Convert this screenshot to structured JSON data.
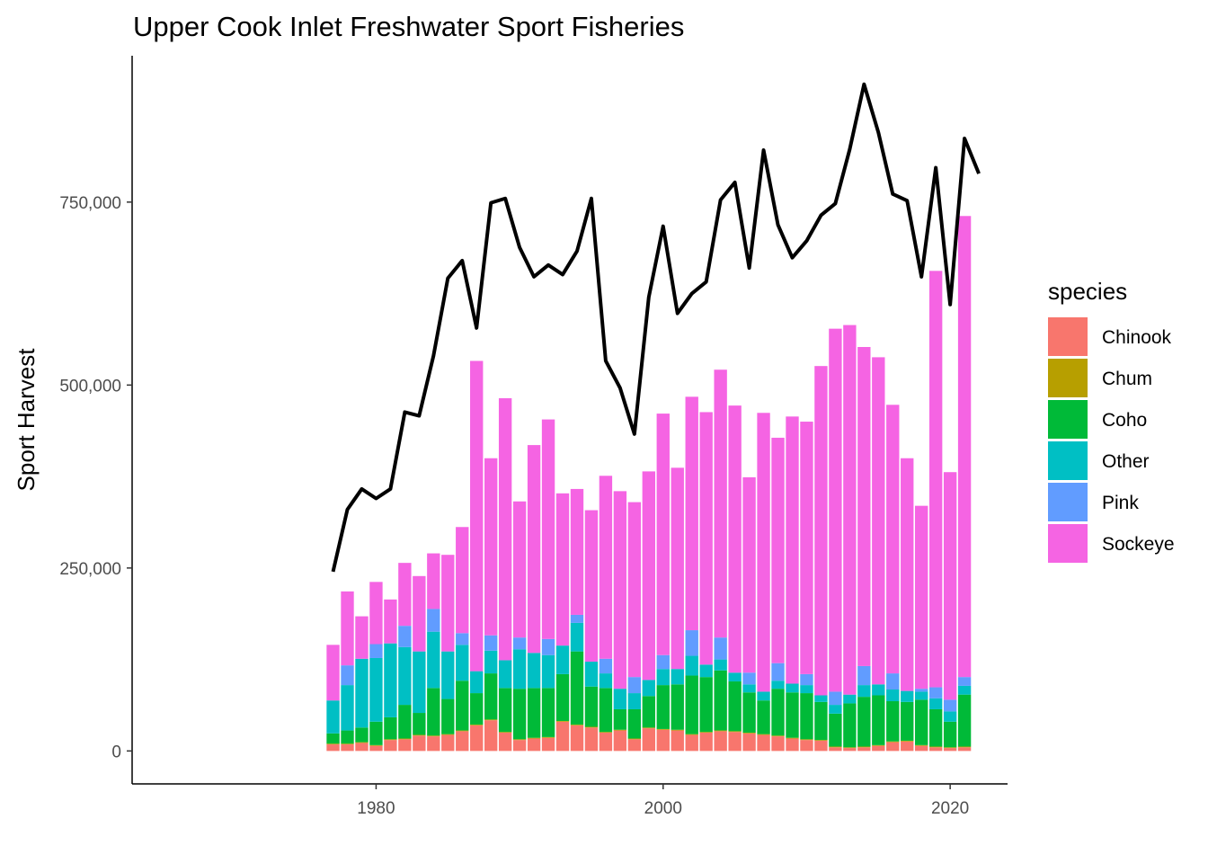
{
  "chart_data": {
    "type": "bar",
    "stacked": true,
    "title": "Upper Cook Inlet Freshwater Sport Fisheries",
    "xlabel": "",
    "ylabel": "Sport Harvest",
    "xlim": [
      1963,
      2024
    ],
    "ylim": [
      -45000,
      950000
    ],
    "x_ticks": [
      1980,
      2000,
      2020
    ],
    "x_tick_labels": [
      "1980",
      "2000",
      "2020"
    ],
    "y_ticks": [
      0,
      250000,
      500000,
      750000
    ],
    "y_tick_labels": [
      "0",
      "250,000",
      "500,000",
      "750,000"
    ],
    "grid": false,
    "legend": {
      "title": "species",
      "placement": "right"
    },
    "colors": {
      "Chinook": "#F8766D",
      "Chum": "#B79F00",
      "Coho": "#00BA38",
      "Other": "#00BFC4",
      "Pink": "#619CFF",
      "Sockeye": "#F564E3",
      "line": "#000000"
    },
    "stack_order_bottom_to_top": [
      "Chinook",
      "Chum",
      "Coho",
      "Other",
      "Pink",
      "Sockeye"
    ],
    "x": [
      1977,
      1978,
      1979,
      1980,
      1981,
      1982,
      1983,
      1984,
      1985,
      1986,
      1987,
      1988,
      1989,
      1990,
      1991,
      1992,
      1993,
      1994,
      1995,
      1996,
      1997,
      1998,
      1999,
      2000,
      2001,
      2002,
      2003,
      2004,
      2005,
      2006,
      2007,
      2008,
      2009,
      2010,
      2011,
      2012,
      2013,
      2014,
      2015,
      2016,
      2017,
      2018,
      2019,
      2020,
      2021
    ],
    "series": [
      {
        "name": "Chinook",
        "values": [
          9000,
          9000,
          11000,
          7000,
          15000,
          16000,
          21000,
          20000,
          22000,
          27000,
          35000,
          42000,
          25000,
          15000,
          17000,
          18000,
          40000,
          35000,
          32000,
          25000,
          28000,
          16000,
          31000,
          29000,
          28000,
          22000,
          25000,
          27000,
          26000,
          24000,
          22000,
          20000,
          17000,
          15000,
          14000,
          5000,
          4000,
          5000,
          7000,
          12000,
          13000,
          7000,
          5000,
          4000,
          5000
        ]
      },
      {
        "name": "Chum",
        "values": [
          1000,
          1000,
          1000,
          1000,
          1000,
          1000,
          1000,
          1000,
          1000,
          1000,
          1000,
          1000,
          1000,
          1000,
          1000,
          1000,
          1000,
          1000,
          1000,
          1000,
          1000,
          1000,
          1000,
          1000,
          1000,
          1000,
          1000,
          1000,
          1000,
          1000,
          1000,
          1000,
          1000,
          1000,
          1000,
          1000,
          1000,
          1000,
          1000,
          1000,
          1000,
          1000,
          1000,
          1000,
          1000
        ]
      },
      {
        "name": "Coho",
        "values": [
          14000,
          18000,
          20000,
          32000,
          30000,
          46000,
          30000,
          65000,
          48000,
          68000,
          43000,
          63000,
          60000,
          69000,
          68000,
          67000,
          64000,
          100000,
          55000,
          60000,
          28000,
          40000,
          43000,
          60000,
          62000,
          80000,
          75000,
          82000,
          68000,
          55000,
          46000,
          64000,
          62000,
          63000,
          52000,
          45000,
          60000,
          68000,
          68000,
          55000,
          53000,
          62000,
          51000,
          35000,
          71000
        ]
      },
      {
        "name": "Other",
        "values": [
          45000,
          62000,
          94000,
          87000,
          101000,
          79000,
          84000,
          77000,
          65000,
          49000,
          30000,
          31000,
          38000,
          54000,
          48000,
          45000,
          39000,
          39000,
          34000,
          20000,
          28000,
          22000,
          22000,
          22000,
          21000,
          27000,
          17000,
          15000,
          12000,
          11000,
          12000,
          11000,
          12000,
          11000,
          9000,
          12000,
          12000,
          16000,
          15000,
          16000,
          15000,
          11000,
          15000,
          14000,
          12000
        ]
      },
      {
        "name": "Pink",
        "values": [
          0,
          27000,
          0,
          19000,
          0,
          29000,
          0,
          31000,
          0,
          16000,
          0,
          21000,
          0,
          16000,
          0,
          22000,
          0,
          11000,
          0,
          20000,
          0,
          22000,
          0,
          19000,
          0,
          35000,
          0,
          30000,
          0,
          16000,
          0,
          24000,
          0,
          15000,
          0,
          18000,
          0,
          26000,
          0,
          22000,
          0,
          4000,
          15000,
          16000,
          12000
        ]
      },
      {
        "name": "Sockeye",
        "values": [
          76000,
          101000,
          58000,
          85000,
          60000,
          86000,
          103000,
          76000,
          132000,
          145000,
          424000,
          242000,
          358000,
          186000,
          284000,
          300000,
          208000,
          172000,
          207000,
          250000,
          270000,
          239000,
          285000,
          330000,
          275000,
          319000,
          345000,
          366000,
          365000,
          267000,
          381000,
          308000,
          365000,
          345000,
          450000,
          496000,
          505000,
          436000,
          447000,
          367000,
          318000,
          250000,
          569000,
          311000,
          630000
        ]
      }
    ],
    "line": {
      "name": "",
      "x": [
        1977,
        1978,
        1979,
        1980,
        1981,
        1982,
        1983,
        1984,
        1985,
        1986,
        1987,
        1988,
        1989,
        1990,
        1991,
        1992,
        1993,
        1994,
        1995,
        1996,
        1997,
        1998,
        1999,
        2000,
        2001,
        2002,
        2003,
        2004,
        2005,
        2006,
        2007,
        2008,
        2009,
        2010,
        2011,
        2012,
        2013,
        2014,
        2015,
        2016,
        2017,
        2018,
        2019,
        2020,
        2021,
        2022
      ],
      "values": [
        245000,
        330000,
        358000,
        345000,
        358000,
        463000,
        458000,
        540000,
        646000,
        670000,
        578000,
        749000,
        755000,
        688000,
        648000,
        664000,
        651000,
        683000,
        755000,
        533000,
        496000,
        433000,
        620000,
        717000,
        598000,
        625000,
        641000,
        753000,
        777000,
        660000,
        821000,
        719000,
        674000,
        697000,
        732000,
        748000,
        822000,
        911000,
        845000,
        761000,
        752000,
        648000,
        797000,
        610000,
        837000,
        789000
      ]
    }
  }
}
